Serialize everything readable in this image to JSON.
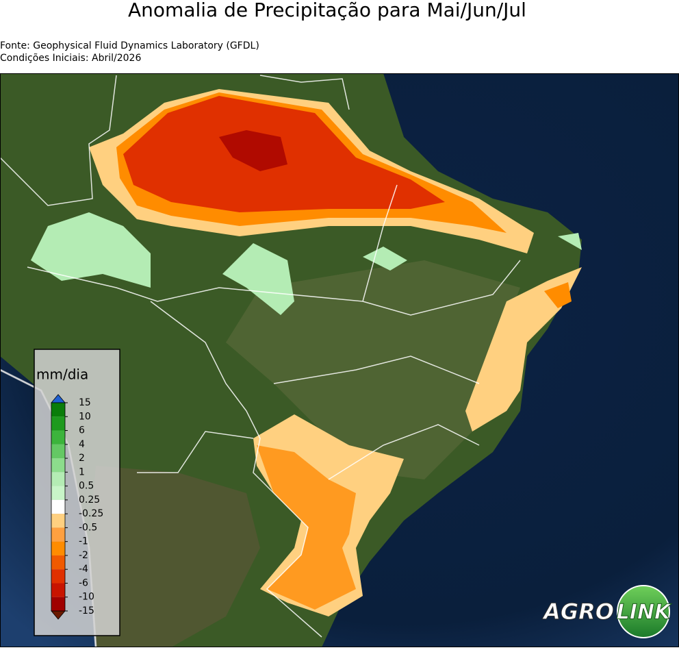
{
  "header": {
    "title": "Anomalia de Precipitação para Mai/Jun/Jul",
    "source": "Fonte: Geophysical Fluid Dynamics Laboratory (GFDL)",
    "initial_conditions": "Condições Iniciais: Abril/2026"
  },
  "legend": {
    "unit": "mm/dia",
    "labels": [
      "15",
      "10",
      "6",
      "4",
      "2",
      "1",
      "0.5",
      "0.25",
      "-0.25",
      "-0.5",
      "-1",
      "-2",
      "-4",
      "-6",
      "-10",
      "-15"
    ],
    "colors": [
      "#0a7d0a",
      "#1e9a1e",
      "#3cb43c",
      "#64c864",
      "#8cdc8c",
      "#b4ecb4",
      "#c8f5c8",
      "#ffffff",
      "#ffd080",
      "#ffa040",
      "#ff8c00",
      "#f05a00",
      "#e03000",
      "#c81400",
      "#a00000"
    ],
    "over_color": "#2060d0",
    "under_color": "#6b1a00"
  },
  "logo": {
    "left": "AGRO",
    "right": "LINK"
  }
}
